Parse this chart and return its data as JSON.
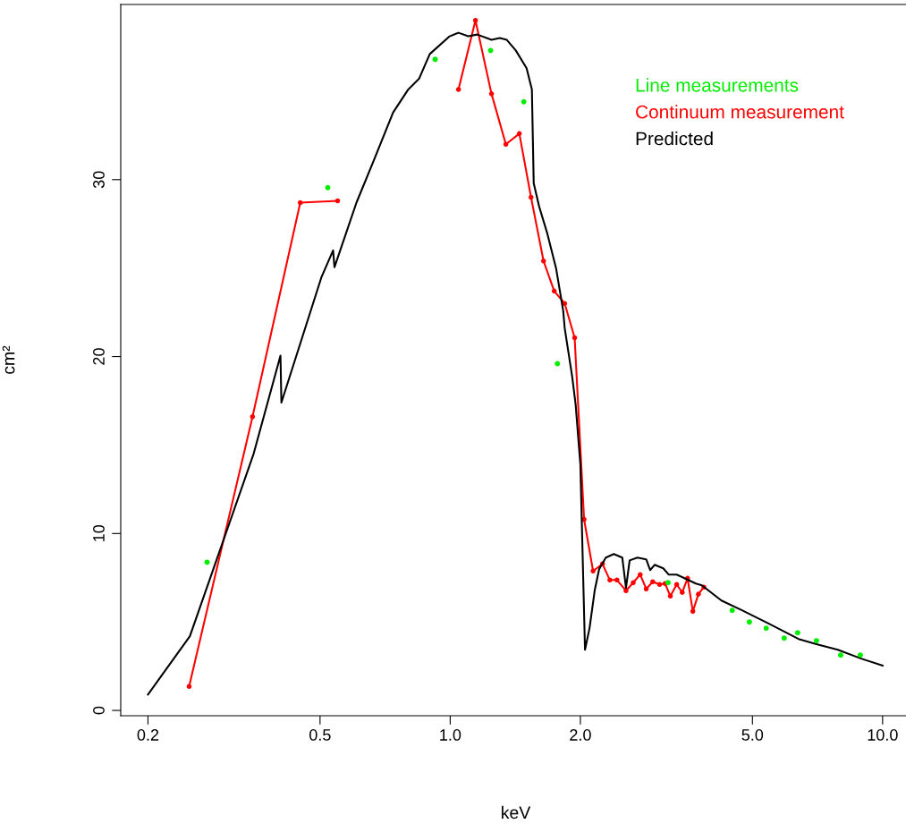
{
  "chart_data": {
    "type": "line",
    "xlabel": "keV",
    "ylabel": "cm²",
    "log": "x",
    "xlim": [
      0.173,
      11.6
    ],
    "ylim": [
      -0.3,
      39.9
    ],
    "xticks": [
      {
        "value": 0.2,
        "label": "0.2"
      },
      {
        "value": 0.5,
        "label": "0.5"
      },
      {
        "value": 1.0,
        "label": "1.0"
      },
      {
        "value": 2.0,
        "label": "2.0"
      },
      {
        "value": 5.0,
        "label": "5.0"
      },
      {
        "value": 10.0,
        "label": "10.0"
      }
    ],
    "yticks": [
      0,
      10,
      20,
      30
    ],
    "grid": false,
    "legend": "top right",
    "series": [
      {
        "name": "Line measurements",
        "type": "scatter",
        "marker": "circle",
        "color": "#00ee00",
        "x": [
          0.274,
          0.521,
          0.923,
          1.24,
          1.48,
          1.77,
          3.19,
          4.49,
          4.92,
          5.38,
          5.92,
          6.36,
          7.03,
          8.0,
          8.88
        ],
        "values": [
          8.38,
          29.55,
          36.8,
          37.3,
          34.4,
          19.6,
          7.22,
          5.66,
          5.0,
          4.65,
          4.09,
          4.39,
          3.94,
          3.13,
          3.13
        ]
      },
      {
        "name": "Continuum measurement",
        "marker": "circle",
        "color": "#ff0000",
        "x": [
          0.249,
          0.349,
          0.45,
          0.549,
          0.8,
          1.045,
          1.144,
          1.246,
          1.345,
          1.445,
          1.538,
          1.644,
          1.74,
          1.84,
          1.94,
          2.04,
          2.14,
          2.25,
          2.34,
          2.43,
          2.55,
          2.65,
          2.75,
          2.84,
          2.94,
          3.05,
          3.14,
          3.23,
          3.34,
          3.44,
          3.54,
          3.64,
          3.75,
          3.86
        ],
        "values": [
          1.36,
          16.6,
          28.7,
          28.8,
          null,
          35.1,
          39.0,
          34.85,
          32.0,
          32.6,
          29.0,
          25.4,
          23.7,
          23.0,
          21.06,
          10.8,
          7.88,
          8.28,
          7.37,
          7.37,
          6.77,
          7.22,
          7.68,
          6.87,
          7.27,
          7.12,
          7.17,
          6.46,
          7.12,
          6.67,
          7.47,
          5.6,
          6.57,
          6.97
        ]
      },
      {
        "name": "Predicted",
        "marker": "none",
        "color": "#000000",
        "x": [
          0.2,
          0.25,
          0.351,
          0.405,
          0.407,
          0.504,
          0.536,
          0.54,
          0.607,
          0.665,
          0.738,
          0.8,
          0.847,
          0.897,
          0.997,
          1.045,
          1.101,
          1.155,
          1.246,
          1.302,
          1.352,
          1.418,
          1.502,
          1.545,
          1.56,
          1.605,
          1.675,
          1.757,
          1.825,
          1.84,
          1.914,
          1.95,
          2.0,
          2.05,
          2.1,
          2.16,
          2.21,
          2.29,
          2.39,
          2.5,
          2.55,
          2.6,
          2.71,
          2.84,
          2.9,
          2.97,
          3.11,
          3.2,
          3.34,
          3.7,
          3.82,
          4.24,
          4.73,
          5.46,
          6.39,
          7.03,
          7.88,
          8.92,
          10.0
        ],
        "values": [
          0.9,
          4.19,
          14.5,
          20.05,
          17.4,
          24.5,
          26.0,
          25.05,
          28.7,
          31.06,
          33.8,
          35.1,
          35.7,
          37.1,
          38.1,
          38.3,
          38.1,
          38.2,
          37.9,
          38.0,
          37.9,
          37.3,
          36.3,
          35.1,
          29.8,
          28.5,
          27.0,
          25.0,
          22.6,
          21.6,
          18.9,
          17.3,
          13.9,
          3.43,
          4.65,
          6.82,
          7.98,
          8.64,
          8.84,
          8.64,
          6.92,
          8.48,
          8.64,
          8.54,
          7.93,
          8.23,
          8.03,
          7.68,
          7.68,
          7.17,
          7.07,
          6.21,
          5.66,
          4.9,
          4.04,
          3.74,
          3.43,
          2.93,
          2.53
        ]
      }
    ]
  }
}
